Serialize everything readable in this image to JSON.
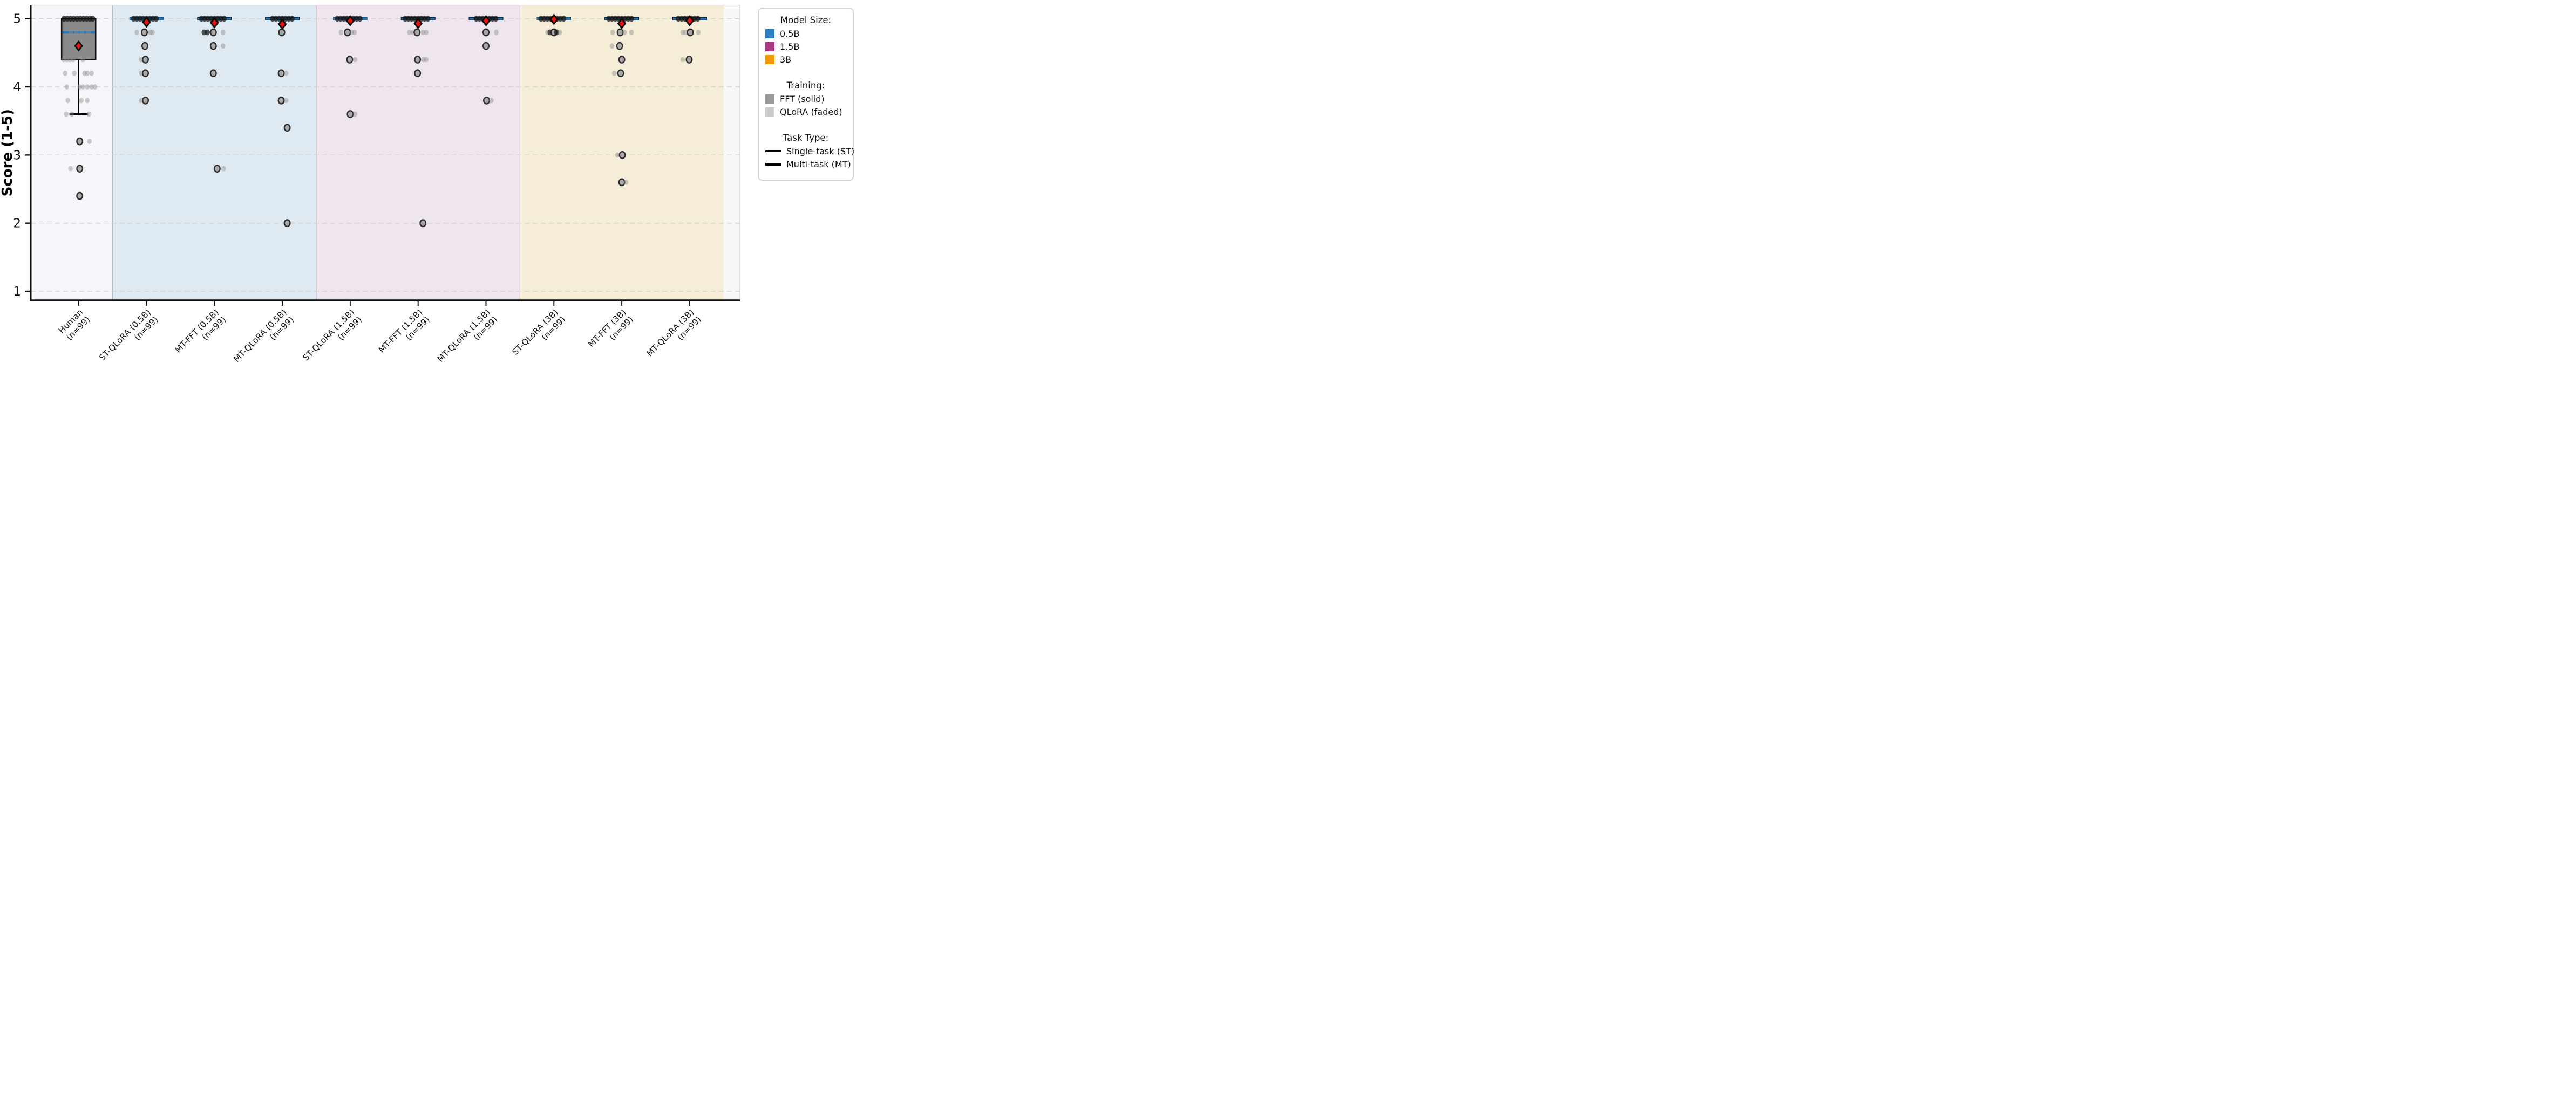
{
  "legend": {
    "model_size_title": "Model Size:",
    "model_sizes": [
      {
        "label": "0.5B",
        "color": "#2e7ebc"
      },
      {
        "label": "1.5B",
        "color": "#a83a80"
      },
      {
        "label": "3B",
        "color": "#f29c05"
      }
    ],
    "training_title": "Training:",
    "trainings": [
      {
        "label": "FFT (solid)",
        "color": "#9a9a9a"
      },
      {
        "label": "QLoRA (faded)",
        "color": "#c9c9c9"
      }
    ],
    "task_type_title": "Task Type:",
    "task_types": [
      {
        "label": "Single-task (ST)",
        "thickness": 2.5
      },
      {
        "label": "Multi-task (MT)",
        "thickness": 4.5
      }
    ]
  },
  "chart_data": {
    "type": "box",
    "ylabel": "Score (1-5)",
    "yticks": [
      1,
      2,
      3,
      4,
      5
    ],
    "ylim": [
      0.8,
      5.2
    ],
    "grid": "horizontal-dashed",
    "legend_position": "outside-right",
    "colors": {
      "median_line": "#2878b8",
      "mean_marker": "#ee1111",
      "human_box_fill": "#8a8a8a",
      "box_edge": "#111111",
      "gridline": "#d2d2d2",
      "band_separator": "#b5b5b5",
      "axis": "#111111",
      "right_strip": "#f7f8fa"
    },
    "bands": [
      {
        "name": "human",
        "color": "#f5f6f9",
        "cols": [
          0
        ]
      },
      {
        "name": "0.5B",
        "color": "#dfe9f1",
        "cols": [
          1,
          2,
          3
        ]
      },
      {
        "name": "1.5B",
        "color": "#eee5ee",
        "cols": [
          4,
          5,
          6
        ]
      },
      {
        "name": "3B",
        "color": "#f6edd9",
        "cols": [
          7,
          8,
          9
        ]
      }
    ],
    "columns": [
      {
        "label": [
          "Human",
          "(n=99)"
        ],
        "group": "human",
        "task": "single",
        "box": {
          "q1": 4.4,
          "median": 4.8,
          "q3": 5.0,
          "whisker_lo": 3.6,
          "whisker_hi": 5.0,
          "mean": 4.6,
          "collapsed": false
        },
        "points": [
          [
            5.0,
            -27,
            "d"
          ],
          [
            5.0,
            -21,
            "d"
          ],
          [
            5.0,
            -15,
            "d"
          ],
          [
            5.0,
            -9,
            "d"
          ],
          [
            5.0,
            -3,
            "d"
          ],
          [
            5.0,
            3,
            "d"
          ],
          [
            5.0,
            9,
            "d"
          ],
          [
            5.0,
            15,
            "d"
          ],
          [
            5.0,
            21,
            "d"
          ],
          [
            5.0,
            26,
            "d"
          ],
          [
            4.8,
            -14,
            "f"
          ],
          [
            4.8,
            -4,
            "f"
          ],
          [
            4.8,
            6,
            "f"
          ],
          [
            4.8,
            18,
            "f"
          ],
          [
            4.6,
            -8,
            "f"
          ],
          [
            4.6,
            2,
            "f"
          ],
          [
            4.6,
            13,
            "f"
          ],
          [
            4.6,
            26,
            "f"
          ],
          [
            4.4,
            -28,
            "f"
          ],
          [
            4.4,
            -22,
            "f"
          ],
          [
            4.4,
            -16,
            "f"
          ],
          [
            4.4,
            -10,
            "f"
          ],
          [
            4.4,
            8,
            "f"
          ],
          [
            4.2,
            -25,
            "f"
          ],
          [
            4.2,
            -8,
            "f"
          ],
          [
            4.2,
            11,
            "f"
          ],
          [
            4.2,
            16,
            "f"
          ],
          [
            4.2,
            24,
            "f"
          ],
          [
            4.0,
            -22,
            "f"
          ],
          [
            4.0,
            2,
            "f"
          ],
          [
            4.0,
            8,
            "f"
          ],
          [
            4.0,
            16,
            "f"
          ],
          [
            4.0,
            24,
            "f"
          ],
          [
            4.0,
            30,
            "f"
          ],
          [
            3.8,
            -20,
            "f"
          ],
          [
            3.8,
            5,
            "f"
          ],
          [
            3.8,
            16,
            "f"
          ],
          [
            3.6,
            -23,
            "f"
          ],
          [
            3.6,
            -13,
            "f"
          ],
          [
            3.6,
            19,
            "f"
          ],
          [
            3.2,
            2,
            "r"
          ],
          [
            3.2,
            20,
            "f"
          ],
          [
            2.8,
            -15,
            "f"
          ],
          [
            2.8,
            2,
            "r"
          ],
          [
            2.4,
            2,
            "r"
          ]
        ]
      },
      {
        "label": [
          "ST-QLoRA (0.5B)",
          "(n=99)"
        ],
        "group": "0.5B",
        "task": "single",
        "box": {
          "q1": 5.0,
          "median": 5.0,
          "q3": 5.0,
          "whisker_lo": 5.0,
          "whisker_hi": 5.0,
          "mean": 4.95,
          "collapsed": true
        },
        "points": [
          [
            5.0,
            -24,
            "d"
          ],
          [
            5.0,
            -18,
            "d"
          ],
          [
            5.0,
            -12,
            "d"
          ],
          [
            5.0,
            -6,
            "d"
          ],
          [
            5.0,
            0,
            "d"
          ],
          [
            5.0,
            6,
            "d"
          ],
          [
            5.0,
            12,
            "d"
          ],
          [
            5.0,
            18,
            "d"
          ],
          [
            4.8,
            -18,
            "f"
          ],
          [
            4.8,
            -4,
            "r"
          ],
          [
            4.8,
            7,
            "f"
          ],
          [
            4.8,
            11,
            "f"
          ],
          [
            4.6,
            -3,
            "r"
          ],
          [
            4.4,
            -10,
            "f"
          ],
          [
            4.4,
            -2,
            "r"
          ],
          [
            4.2,
            -10,
            "f"
          ],
          [
            4.2,
            -2,
            "r"
          ],
          [
            3.8,
            -10,
            "f"
          ],
          [
            3.8,
            -2,
            "r"
          ]
        ]
      },
      {
        "label": [
          "MT-FFT (0.5B)",
          "(n=99)"
        ],
        "group": "0.5B",
        "task": "multi",
        "box": {
          "q1": 5.0,
          "median": 5.0,
          "q3": 5.0,
          "whisker_lo": 5.0,
          "whisker_hi": 5.0,
          "mean": 4.94,
          "collapsed": true
        },
        "points": [
          [
            5.0,
            -24,
            "d"
          ],
          [
            5.0,
            -18,
            "d"
          ],
          [
            5.0,
            -12,
            "d"
          ],
          [
            5.0,
            -6,
            "d"
          ],
          [
            5.0,
            0,
            "d"
          ],
          [
            5.0,
            6,
            "d"
          ],
          [
            5.0,
            12,
            "d"
          ],
          [
            5.0,
            18,
            "d"
          ],
          [
            4.8,
            -19,
            "d"
          ],
          [
            4.8,
            -13,
            "d"
          ],
          [
            4.8,
            -2,
            "r"
          ],
          [
            4.8,
            16,
            "f"
          ],
          [
            4.6,
            -2,
            "r"
          ],
          [
            4.6,
            16,
            "f"
          ],
          [
            4.2,
            -2,
            "r"
          ],
          [
            2.8,
            5,
            "r"
          ],
          [
            2.8,
            17,
            "f"
          ]
        ]
      },
      {
        "label": [
          "MT-QLoRA (0.5B)",
          "(n=99)"
        ],
        "group": "0.5B",
        "task": "multi",
        "box": {
          "q1": 5.0,
          "median": 5.0,
          "q3": 5.0,
          "whisker_lo": 5.0,
          "whisker_hi": 5.0,
          "mean": 4.92,
          "collapsed": true
        },
        "points": [
          [
            5.0,
            -18,
            "d"
          ],
          [
            5.0,
            -12,
            "d"
          ],
          [
            5.0,
            -6,
            "d"
          ],
          [
            5.0,
            0,
            "d"
          ],
          [
            5.0,
            6,
            "d"
          ],
          [
            5.0,
            12,
            "d"
          ],
          [
            5.0,
            18,
            "d"
          ],
          [
            4.8,
            -1,
            "r"
          ],
          [
            4.2,
            -2,
            "r"
          ],
          [
            4.2,
            7,
            "f"
          ],
          [
            3.8,
            -2,
            "r"
          ],
          [
            3.8,
            7,
            "f"
          ],
          [
            3.4,
            9,
            "r"
          ],
          [
            2.0,
            9,
            "r"
          ]
        ]
      },
      {
        "label": [
          "ST-QLoRA (1.5B)",
          "(n=99)"
        ],
        "group": "1.5B",
        "task": "single",
        "box": {
          "q1": 5.0,
          "median": 5.0,
          "q3": 5.0,
          "whisker_lo": 5.0,
          "whisker_hi": 5.0,
          "mean": 4.97,
          "collapsed": true
        },
        "points": [
          [
            5.0,
            -24,
            "d"
          ],
          [
            5.0,
            -18,
            "d"
          ],
          [
            5.0,
            -12,
            "d"
          ],
          [
            5.0,
            -6,
            "d"
          ],
          [
            5.0,
            0,
            "d"
          ],
          [
            5.0,
            6,
            "d"
          ],
          [
            5.0,
            12,
            "d"
          ],
          [
            5.0,
            18,
            "d"
          ],
          [
            4.8,
            -17,
            "f"
          ],
          [
            4.8,
            -5,
            "r"
          ],
          [
            4.8,
            3,
            "f"
          ],
          [
            4.8,
            8,
            "f"
          ],
          [
            4.4,
            -1,
            "r"
          ],
          [
            4.4,
            9,
            "f"
          ],
          [
            3.6,
            0,
            "r"
          ],
          [
            3.6,
            9,
            "f"
          ]
        ]
      },
      {
        "label": [
          "MT-FFT (1.5B)",
          "(n=99)"
        ],
        "group": "1.5B",
        "task": "multi",
        "box": {
          "q1": 5.0,
          "median": 5.0,
          "q3": 5.0,
          "whisker_lo": 5.0,
          "whisker_hi": 5.0,
          "mean": 4.93,
          "collapsed": true
        },
        "points": [
          [
            5.0,
            -24,
            "d"
          ],
          [
            5.0,
            -18,
            "d"
          ],
          [
            5.0,
            -12,
            "d"
          ],
          [
            5.0,
            -6,
            "d"
          ],
          [
            5.0,
            0,
            "d"
          ],
          [
            5.0,
            6,
            "d"
          ],
          [
            5.0,
            12,
            "d"
          ],
          [
            5.0,
            18,
            "d"
          ],
          [
            4.8,
            -16,
            "f"
          ],
          [
            4.8,
            -10,
            "f"
          ],
          [
            4.8,
            -2,
            "r"
          ],
          [
            4.8,
            9,
            "f"
          ],
          [
            4.8,
            15,
            "f"
          ],
          [
            4.4,
            -1,
            "r"
          ],
          [
            4.4,
            10,
            "f"
          ],
          [
            4.4,
            15,
            "f"
          ],
          [
            4.2,
            -1,
            "r"
          ],
          [
            2.0,
            9,
            "r"
          ]
        ]
      },
      {
        "label": [
          "MT-QLoRA (1.5B)",
          "(n=99)"
        ],
        "group": "1.5B",
        "task": "multi",
        "box": {
          "q1": 5.0,
          "median": 5.0,
          "q3": 5.0,
          "whisker_lo": 5.0,
          "whisker_hi": 5.0,
          "mean": 4.97,
          "collapsed": true
        },
        "points": [
          [
            5.0,
            -18,
            "d"
          ],
          [
            5.0,
            -12,
            "d"
          ],
          [
            5.0,
            -6,
            "d"
          ],
          [
            5.0,
            0,
            "d"
          ],
          [
            5.0,
            6,
            "d"
          ],
          [
            5.0,
            12,
            "d"
          ],
          [
            5.0,
            18,
            "d"
          ],
          [
            4.8,
            0,
            "r"
          ],
          [
            4.8,
            19,
            "f"
          ],
          [
            4.6,
            0,
            "r"
          ],
          [
            3.8,
            1,
            "r"
          ],
          [
            3.8,
            10,
            "f"
          ]
        ]
      },
      {
        "label": [
          "ST-QLoRA (3B)",
          "(n=99)"
        ],
        "group": "3B",
        "task": "single",
        "box": {
          "q1": 5.0,
          "median": 5.0,
          "q3": 5.0,
          "whisker_lo": 5.0,
          "whisker_hi": 5.0,
          "mean": 4.99,
          "collapsed": true
        },
        "points": [
          [
            5.0,
            -24,
            "d"
          ],
          [
            5.0,
            -18,
            "d"
          ],
          [
            5.0,
            -12,
            "d"
          ],
          [
            5.0,
            -6,
            "d"
          ],
          [
            5.0,
            0,
            "d"
          ],
          [
            5.0,
            6,
            "d"
          ],
          [
            5.0,
            12,
            "d"
          ],
          [
            5.0,
            18,
            "d"
          ],
          [
            4.8,
            -12,
            "f"
          ],
          [
            4.8,
            -7,
            "d"
          ],
          [
            4.8,
            0,
            "r"
          ],
          [
            4.8,
            5,
            "d"
          ],
          [
            4.8,
            11,
            "f"
          ]
        ]
      },
      {
        "label": [
          "MT-FFT (3B)",
          "(n=99)"
        ],
        "group": "3B",
        "task": "multi",
        "box": {
          "q1": 5.0,
          "median": 5.0,
          "q3": 5.0,
          "whisker_lo": 5.0,
          "whisker_hi": 5.0,
          "mean": 4.93,
          "collapsed": true
        },
        "points": [
          [
            5.0,
            -24,
            "d"
          ],
          [
            5.0,
            -18,
            "d"
          ],
          [
            5.0,
            -12,
            "d"
          ],
          [
            5.0,
            -6,
            "d"
          ],
          [
            5.0,
            0,
            "d"
          ],
          [
            5.0,
            6,
            "d"
          ],
          [
            5.0,
            12,
            "d"
          ],
          [
            5.0,
            18,
            "d"
          ],
          [
            4.8,
            -17,
            "f"
          ],
          [
            4.8,
            -3,
            "r"
          ],
          [
            4.8,
            5,
            "f"
          ],
          [
            4.8,
            18,
            "f"
          ],
          [
            4.6,
            -18,
            "f"
          ],
          [
            4.6,
            -4,
            "r"
          ],
          [
            4.4,
            0,
            "r"
          ],
          [
            4.2,
            -14,
            "f"
          ],
          [
            4.2,
            -2,
            "r"
          ],
          [
            3.0,
            -8,
            "f"
          ],
          [
            3.0,
            1,
            "r"
          ],
          [
            2.6,
            0,
            "r"
          ],
          [
            2.6,
            8,
            "f"
          ]
        ]
      },
      {
        "label": [
          "MT-QLoRA (3B)",
          "(n=99)"
        ],
        "group": "3B",
        "task": "multi",
        "box": {
          "q1": 5.0,
          "median": 5.0,
          "q3": 5.0,
          "whisker_lo": 5.0,
          "whisker_hi": 5.0,
          "mean": 4.97,
          "collapsed": true
        },
        "points": [
          [
            5.0,
            -21,
            "d"
          ],
          [
            5.0,
            -15,
            "d"
          ],
          [
            5.0,
            -9,
            "d"
          ],
          [
            5.0,
            -3,
            "d"
          ],
          [
            5.0,
            3,
            "d"
          ],
          [
            5.0,
            9,
            "d"
          ],
          [
            5.0,
            15,
            "d"
          ],
          [
            4.8,
            -13,
            "f"
          ],
          [
            4.8,
            -8,
            "f"
          ],
          [
            4.8,
            1,
            "r"
          ],
          [
            4.8,
            16,
            "f"
          ],
          [
            4.4,
            -13,
            "f"
          ],
          [
            4.4,
            -1,
            "r"
          ]
        ]
      }
    ]
  }
}
